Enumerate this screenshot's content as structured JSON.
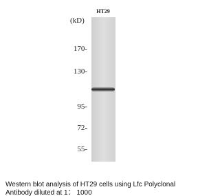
{
  "lane_label": "HT29",
  "unit": "(kD)",
  "markers": [
    "170-",
    "130-",
    "95-",
    "72-",
    "55-"
  ],
  "caption": [
    "Western blot analysis of HT29 cells using Lfc Polyclonal",
    "Antibody diluted at 1： 1000"
  ]
}
